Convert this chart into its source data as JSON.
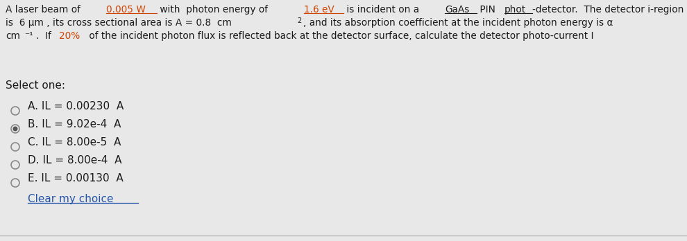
{
  "bg_color": "#e8e8e8",
  "text_color": "#1a1a1a",
  "select_label": "Select one:",
  "options": [
    {
      "label": "A. IL = 0.00230  A",
      "selected": false
    },
    {
      "label": "B. IL = 9.02e-4  A",
      "selected": true
    },
    {
      "label": "C. IL = 8.00e-5  A",
      "selected": false
    },
    {
      "label": "D. IL = 8.00e-4  A",
      "selected": false
    },
    {
      "label": "E. IL = 0.00130  A",
      "selected": false
    }
  ],
  "clear_label": "Clear my choice",
  "body_fontsize": 9.8,
  "option_fontsize": 11.0,
  "border_color": "#bbbbbb",
  "link_color": "#2255aa",
  "orange_color": "#cc4400",
  "radio_edge_color": "#888888",
  "radio_fill_color": "#555555"
}
